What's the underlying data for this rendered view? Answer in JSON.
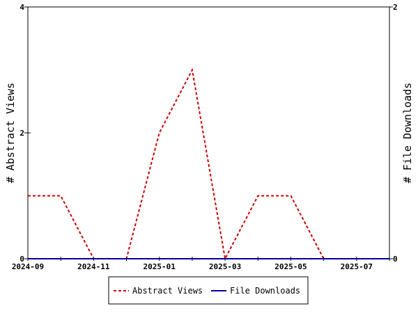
{
  "chart_data": {
    "type": "line",
    "x": [
      "2024-09",
      "2024-10",
      "2024-11",
      "2024-12",
      "2025-01",
      "2025-02",
      "2025-03",
      "2025-04",
      "2025-05",
      "2025-06",
      "2025-07",
      "2025-08"
    ],
    "x_tick_labels": [
      "2024-09",
      "2024-11",
      "2025-01",
      "2025-03",
      "2025-05",
      "2025-07"
    ],
    "xlim": [
      "2024-09",
      "2025-08"
    ],
    "ylabel": "# Abstract Views",
    "y2label": "# File Downloads",
    "ylim": [
      0,
      4
    ],
    "y_ticks": [
      0,
      2,
      4
    ],
    "y2lim": [
      0,
      2
    ],
    "y2_ticks": [
      0,
      2
    ],
    "grid": false,
    "legend_position": "bottom-center",
    "series": [
      {
        "name": "Abstract Views",
        "axis": "left",
        "color": "#cc0000",
        "style": "dashed",
        "values": [
          1,
          1,
          0,
          0,
          2,
          3,
          0,
          1,
          1,
          0,
          0,
          0
        ]
      },
      {
        "name": "File Downloads",
        "axis": "right",
        "color": "#000099",
        "style": "solid",
        "values": [
          0,
          0,
          0,
          0,
          0,
          0,
          0,
          0,
          0,
          0,
          0,
          0
        ]
      }
    ]
  }
}
